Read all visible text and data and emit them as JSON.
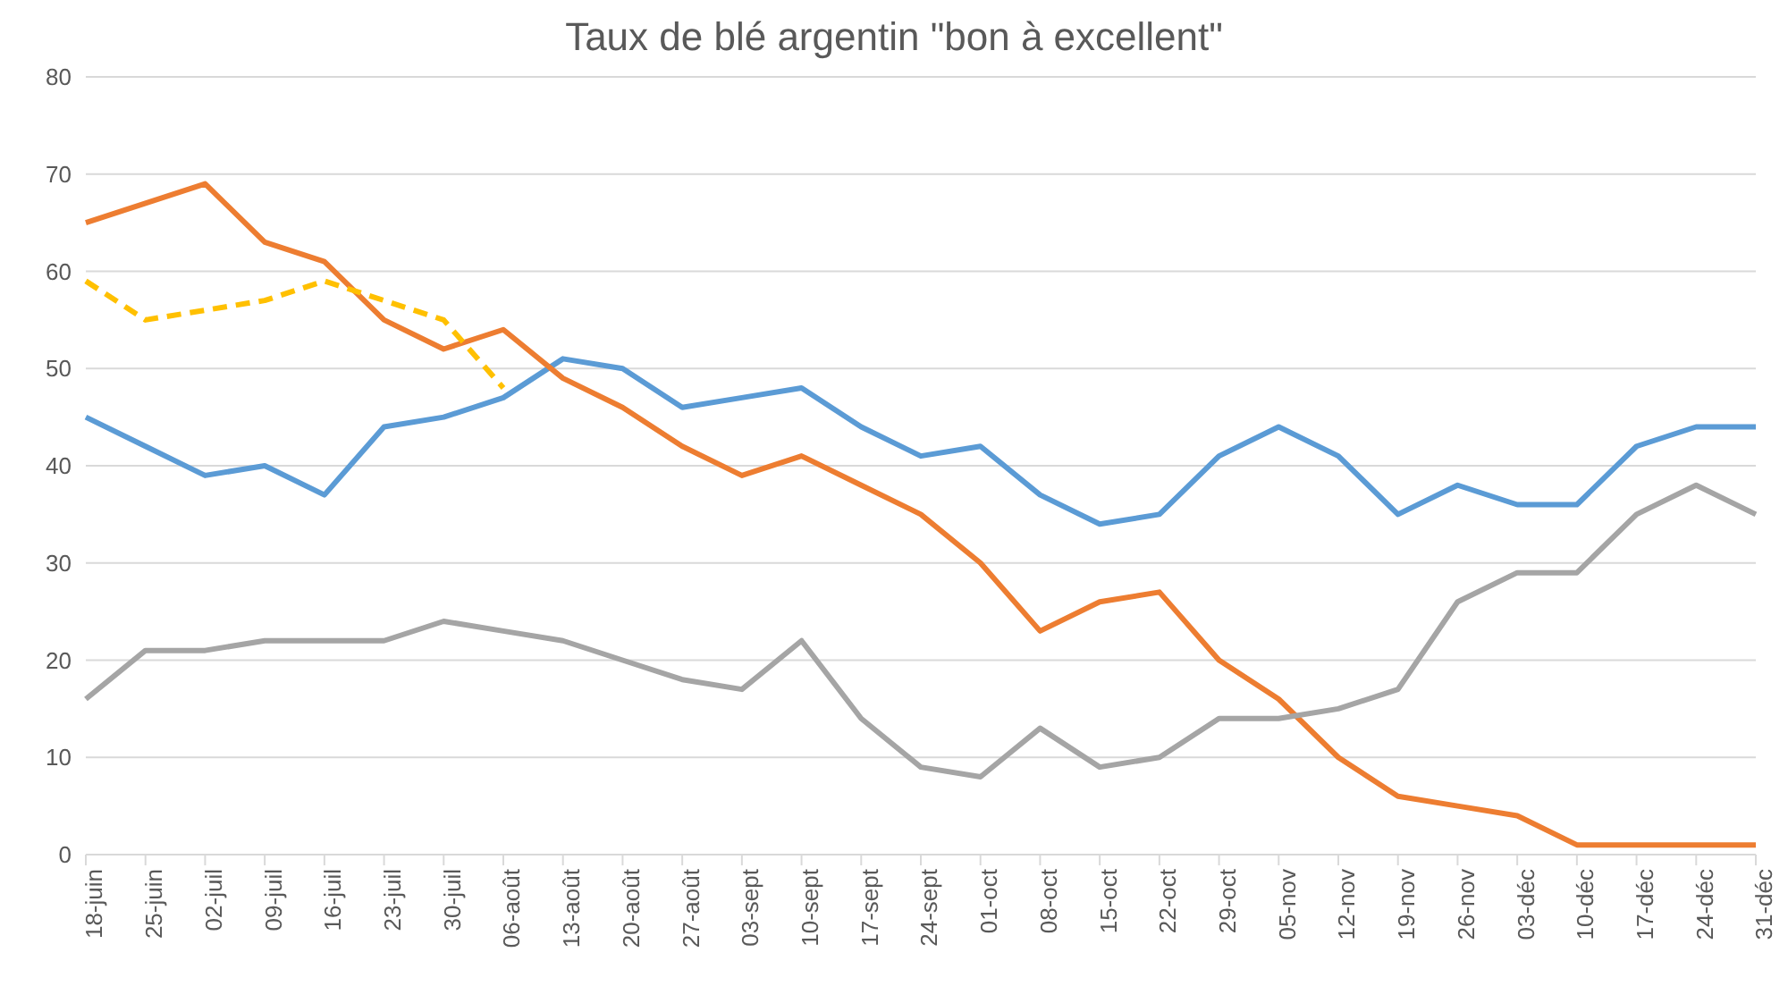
{
  "chart_data": {
    "type": "line",
    "title": "Taux de blé argentin \"bon à excellent\"",
    "categories": [
      "18-juin",
      "25-juin",
      "02-juil",
      "09-juil",
      "16-juil",
      "23-juil",
      "30-juil",
      "06-août",
      "13-août",
      "20-août",
      "27-août",
      "03-sept",
      "10-sept",
      "17-sept",
      "24-sept",
      "01-oct",
      "08-oct",
      "15-oct",
      "22-oct",
      "29-oct",
      "05-nov",
      "12-nov",
      "19-nov",
      "26-nov",
      "03-déc",
      "10-déc",
      "17-déc",
      "24-déc",
      "31-déc"
    ],
    "series": [
      {
        "color": "#5b9bd5",
        "values": [
          45,
          42,
          39,
          40,
          37,
          44,
          45,
          47,
          51,
          50,
          46,
          47,
          48,
          44,
          41,
          42,
          37,
          34,
          35,
          41,
          44,
          41,
          35,
          38,
          36,
          36,
          42,
          44,
          44
        ]
      },
      {
        "color": "#ed7d31",
        "values": [
          65,
          67,
          69,
          63,
          61,
          55,
          52,
          54,
          49,
          46,
          42,
          39,
          41,
          38,
          35,
          30,
          23,
          26,
          27,
          20,
          16,
          10,
          6,
          5,
          4,
          1,
          1,
          1,
          1
        ]
      },
      {
        "color": "#a5a5a5",
        "values": [
          16,
          21,
          21,
          22,
          22,
          22,
          24,
          23,
          22,
          20,
          18,
          17,
          22,
          14,
          9,
          8,
          13,
          9,
          10,
          14,
          14,
          15,
          17,
          26,
          29,
          29,
          35,
          38,
          35
        ]
      },
      {
        "color": "#ffc000",
        "line_style": "dashed",
        "values": [
          59,
          55,
          56,
          57,
          59,
          57,
          55,
          48,
          null,
          null,
          null,
          null,
          null,
          null,
          null,
          null,
          null,
          null,
          null,
          null,
          null,
          null,
          null,
          null,
          null,
          null,
          null,
          null,
          null
        ]
      }
    ],
    "ylim": [
      0,
      80
    ],
    "yticks": [
      0,
      10,
      20,
      30,
      40,
      50,
      60,
      70,
      80
    ],
    "grid": "y",
    "marker": "none",
    "line_style": "solid",
    "legend": false
  }
}
